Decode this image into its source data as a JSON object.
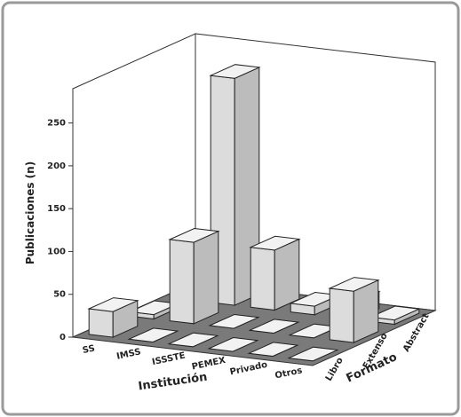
{
  "chart_data": {
    "type": "bar3d",
    "ylabel": "Publicaciones (n)",
    "xlabel": "Institución",
    "zlabel": "Formato",
    "categories": [
      "SS",
      "IMSS",
      "ISSSTE",
      "PEMEX",
      "Privado",
      "Otros"
    ],
    "series": [
      {
        "name": "Libro",
        "values": [
          30,
          0,
          0,
          0,
          0,
          0
        ]
      },
      {
        "name": "Extenso",
        "values": [
          5,
          95,
          0,
          0,
          0,
          60
        ]
      },
      {
        "name": "Abstract",
        "values": [
          0,
          265,
          70,
          10,
          20,
          5
        ]
      }
    ],
    "color": "#dcdcdc",
    "ylim": [
      0,
      290
    ],
    "yticks": [
      0,
      50,
      100,
      150,
      200,
      250
    ]
  }
}
